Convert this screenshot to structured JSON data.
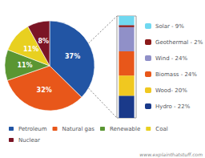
{
  "chart_data": [
    {
      "type": "pie",
      "categories": [
        "Petroleum",
        "Natural gas",
        "Renewable",
        "Coal",
        "Nuclear"
      ],
      "values": [
        37,
        32,
        11,
        11,
        8
      ],
      "value_labels": [
        "37%",
        "32%",
        "11%",
        "11%",
        "8%"
      ],
      "colors": [
        "#2255a4",
        "#e8571a",
        "#5a9632",
        "#e8d020",
        "#7b1525"
      ],
      "data_labels": true,
      "legend": "bottom",
      "annotations": [
        "www.explainthatstuff.com"
      ]
    },
    {
      "type": "bar",
      "stacked": true,
      "categories": [
        null
      ],
      "series": [
        {
          "name": "Hydro - 22%",
          "color": "#1a3a8a",
          "values": [
            22
          ]
        },
        {
          "name": "Wood- 20%",
          "color": "#f0c820",
          "values": [
            20
          ]
        },
        {
          "name": "Biomass - 24%",
          "color": "#e8571a",
          "values": [
            24
          ]
        },
        {
          "name": "Wind - 24%",
          "color": "#9090c8",
          "values": [
            24
          ]
        },
        {
          "name": "Geothermal - 2%",
          "color": "#8b1a1a",
          "values": [
            2
          ]
        },
        {
          "name": "Solar - 9%",
          "color": "#70d8f0",
          "values": [
            9
          ]
        }
      ],
      "ylim": [
        0,
        101
      ],
      "tick_labels": false,
      "legend": "right"
    }
  ]
}
